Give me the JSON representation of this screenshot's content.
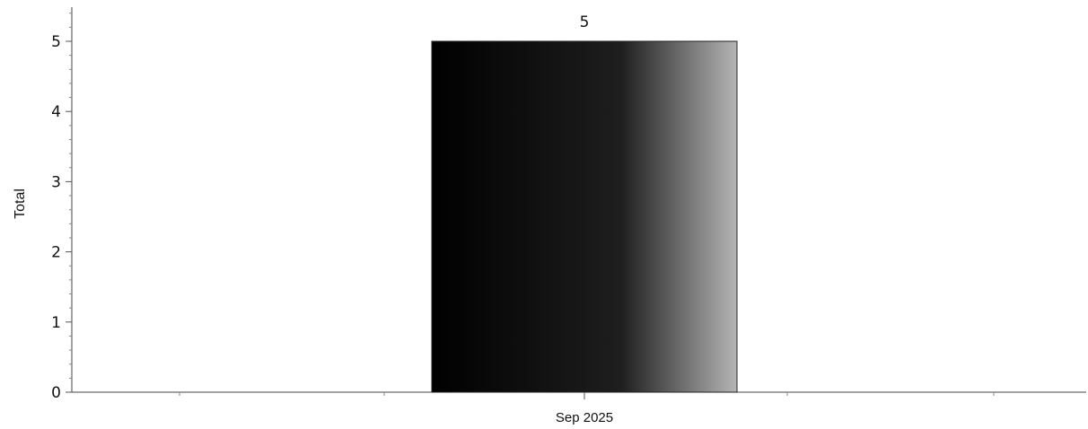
{
  "chart_data": {
    "type": "bar",
    "title": "",
    "xlabel": "",
    "ylabel": "Total",
    "categories": [
      "Sep 2025"
    ],
    "values": [
      5
    ],
    "data_labels": [
      "5"
    ],
    "ylim": [
      0,
      5.5
    ],
    "yticks": [
      0,
      1,
      2,
      3,
      4,
      5
    ],
    "grid": false,
    "legend": "none",
    "bar_gradient": [
      "#000000",
      "#1e1e1e",
      "#b5b5b5"
    ]
  }
}
